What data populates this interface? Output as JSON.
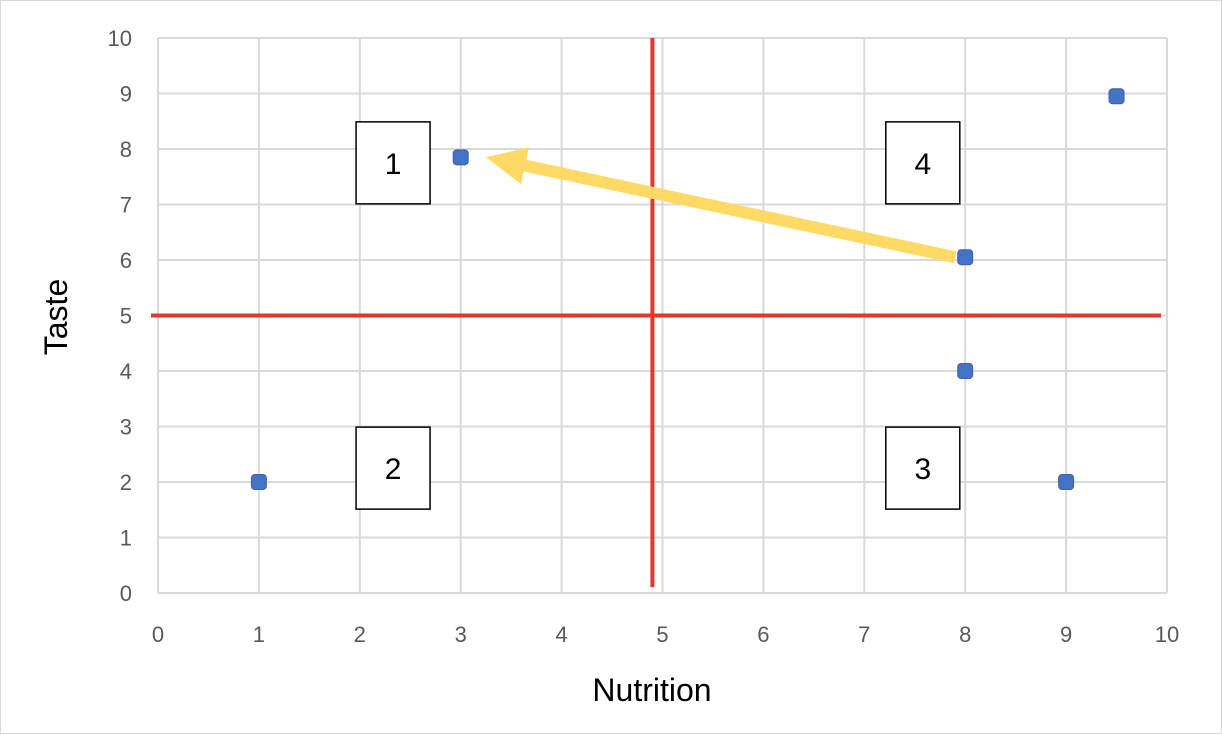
{
  "chart_data": {
    "type": "scatter",
    "title": "",
    "xlabel": "Nutrition",
    "ylabel": "Taste",
    "xlim": [
      0,
      10
    ],
    "ylim": [
      0,
      10
    ],
    "xticks": [
      "0",
      "1",
      "2",
      "3",
      "4",
      "5",
      "6",
      "7",
      "8",
      "9",
      "10"
    ],
    "yticks": [
      "0",
      "1",
      "2",
      "3",
      "4",
      "5",
      "6",
      "7",
      "8",
      "9",
      "10"
    ],
    "grid": true,
    "legend": "none",
    "points": [
      {
        "x": 1,
        "y": 2
      },
      {
        "x": 3,
        "y": 7.85
      },
      {
        "x": 8,
        "y": 6.05
      },
      {
        "x": 8,
        "y": 4
      },
      {
        "x": 9,
        "y": 2
      },
      {
        "x": 9.5,
        "y": 8.95
      }
    ],
    "reference_lines": [
      {
        "orientation": "vertical",
        "x": 4.9
      },
      {
        "orientation": "horizontal",
        "y": 5
      }
    ],
    "quadrant_labels": [
      {
        "text": "1",
        "x": 2.3,
        "y": 7.75
      },
      {
        "text": "2",
        "x": 2.3,
        "y": 2.25
      },
      {
        "text": "3",
        "x": 7.55,
        "y": 2.25
      },
      {
        "text": "4",
        "x": 7.55,
        "y": 7.75
      }
    ],
    "arrow": {
      "from": {
        "x": 7.9,
        "y": 6.05
      },
      "to": {
        "x": 3.25,
        "y": 7.85
      }
    },
    "colors": {
      "point": "#4472C4",
      "reference_line": "#E8352B",
      "arrow": "#FFD966",
      "grid": "#d9d9d9",
      "axis_text": "#595959"
    }
  }
}
